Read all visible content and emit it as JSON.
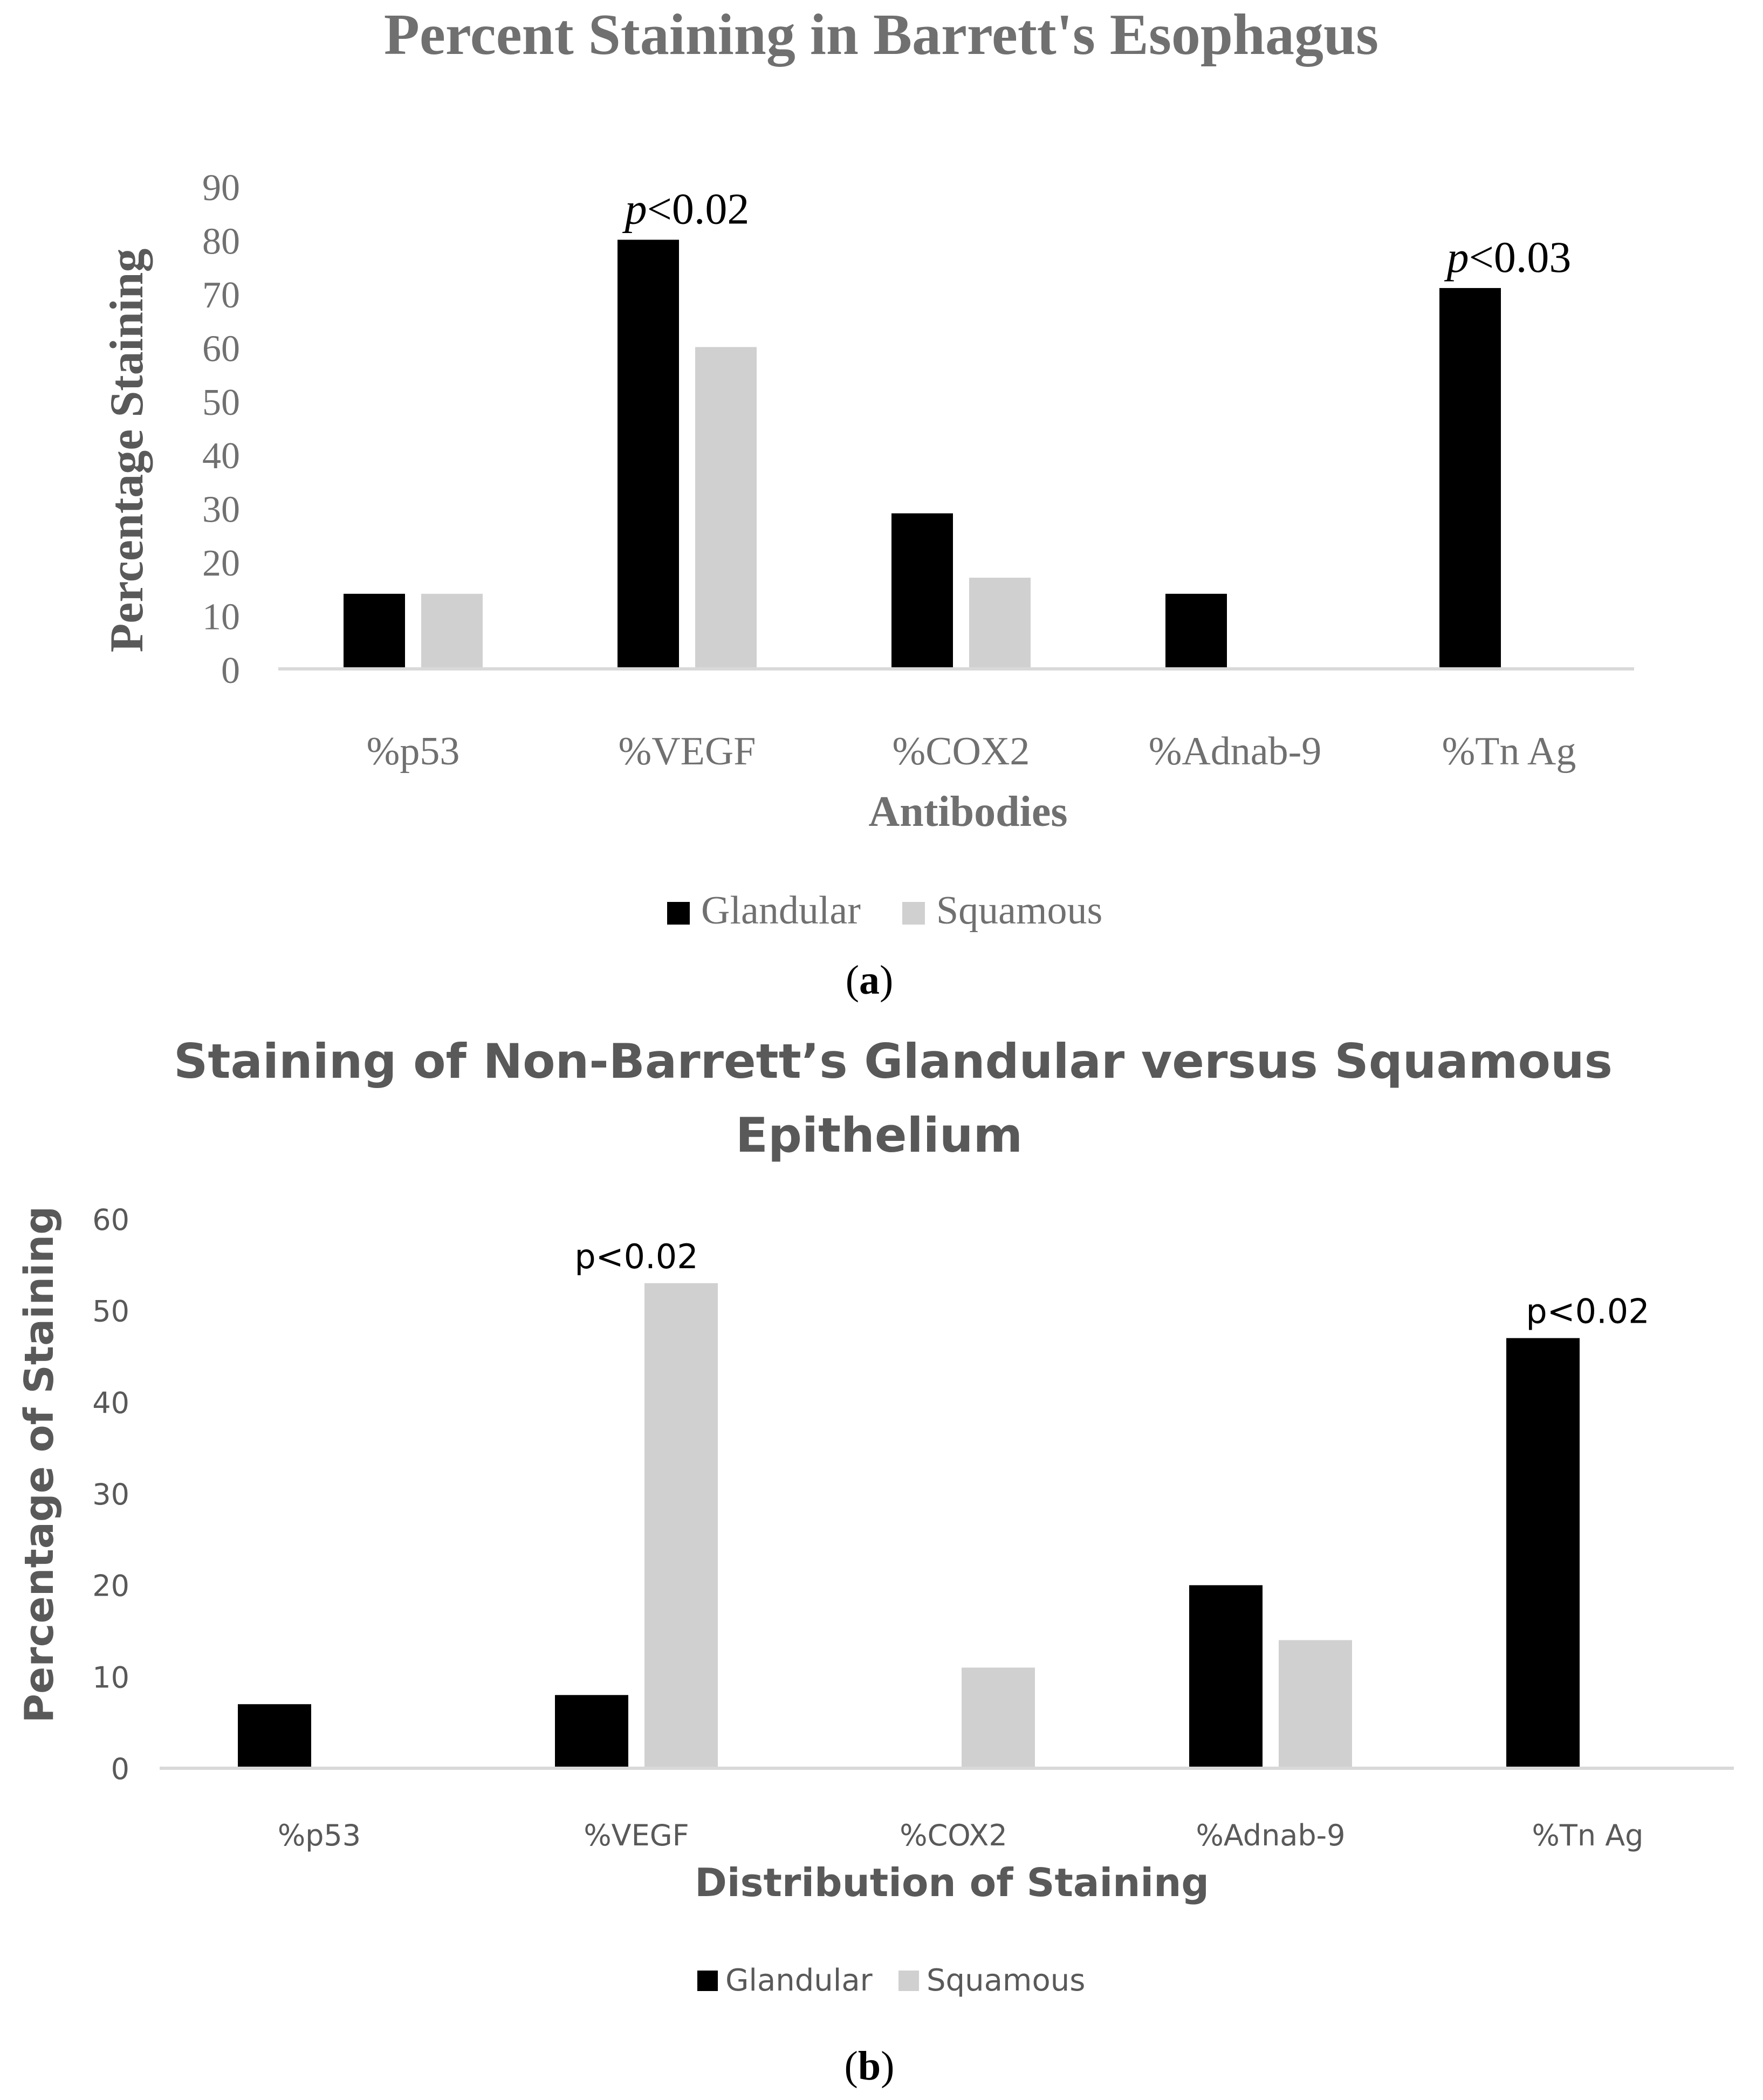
{
  "chart_data": [
    {
      "type": "bar",
      "title": "Percent Staining in Barrett's Esophagus",
      "xlabel": "Antibodies",
      "ylabel": "Percentage Staining",
      "categories": [
        "%p53",
        "%VEGF",
        "%COX2",
        "%Adnab-9",
        "%Tn Ag"
      ],
      "series": [
        {
          "name": "Glandular",
          "color": "#000000",
          "values": [
            14,
            80,
            29,
            14,
            71
          ]
        },
        {
          "name": "Squamous",
          "color": "#d0d0d0",
          "values": [
            14,
            60,
            17,
            0,
            0
          ]
        }
      ],
      "ylim": [
        0,
        90
      ],
      "yticks": [
        "0",
        "10",
        "20",
        "30",
        "40",
        "50",
        "60",
        "70",
        "80",
        "90"
      ],
      "gridlines": false,
      "legend_position": "bottom-center",
      "annotations": [
        {
          "category": "%VEGF",
          "prefix": "p",
          "text": "<0.02"
        },
        {
          "category": "%Tn Ag",
          "prefix": "p",
          "text": "<0.03"
        }
      ],
      "panel_label": "a"
    },
    {
      "type": "bar",
      "title": "Staining of Non-Barrett’s  Glandular versus Squamous Epithelium",
      "title_lines": [
        "Staining of Non-Barrett’s  Glandular versus Squamous",
        "Epithelium"
      ],
      "xlabel": "Distribution of Staining",
      "ylabel": "Percentage of Staining",
      "categories": [
        "%p53",
        "%VEGF",
        "%COX2",
        "%Adnab-9",
        "%Tn Ag"
      ],
      "series": [
        {
          "name": "Glandular",
          "color": "#000000",
          "values": [
            7,
            8,
            0,
            20,
            47
          ]
        },
        {
          "name": "Squamous",
          "color": "#d0d0d0",
          "values": [
            0,
            53,
            11,
            14,
            0
          ]
        }
      ],
      "ylim": [
        0,
        60
      ],
      "yticks": [
        "0",
        "10",
        "20",
        "30",
        "40",
        "50",
        "60"
      ],
      "gridlines": false,
      "legend_position": "bottom-center",
      "annotations": [
        {
          "category": "%VEGF",
          "prefix": "",
          "text": "p<0.02"
        },
        {
          "category": "%Tn Ag",
          "prefix": "",
          "text": "p<0.02"
        }
      ],
      "panel_label": "b"
    }
  ]
}
